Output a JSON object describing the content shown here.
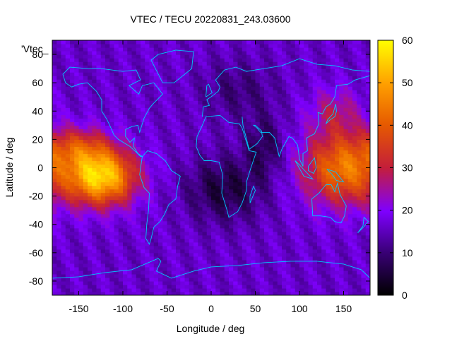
{
  "chart_data": {
    "type": "heatmap",
    "title": "VTEC / TECU 20220831_243.03600",
    "xlabel": "Longitude / deg",
    "ylabel": "Latitude / deg",
    "legend_key": "'Vtec_",
    "xlim": [
      -180,
      180
    ],
    "ylim": [
      -90,
      90
    ],
    "zlim": [
      0,
      60
    ],
    "x_ticks": [
      -150,
      -100,
      -50,
      0,
      50,
      100,
      150
    ],
    "y_ticks": [
      -80,
      -60,
      -40,
      -20,
      0,
      20,
      40,
      60,
      80
    ],
    "colorbar_ticks": [
      0,
      10,
      20,
      30,
      40,
      50,
      60
    ],
    "colormap": [
      "#000000",
      "#3a0078",
      "#7f00ff",
      "#c41e3a",
      "#e65a00",
      "#ffd400",
      "#ffff00"
    ],
    "grid_step_deg": {
      "lon": 5,
      "lat": 2.5
    },
    "features": [
      {
        "lon": -125,
        "lat": -8,
        "peak_tecu": 58,
        "note": ""
      },
      {
        "lon": 150,
        "lat": 0,
        "peak_tecu": 44,
        "note": ""
      },
      {
        "lon": 15,
        "lat": -15,
        "min_tecu": 4,
        "note": ""
      }
    ],
    "coastline_color": "#00c8ff"
  }
}
